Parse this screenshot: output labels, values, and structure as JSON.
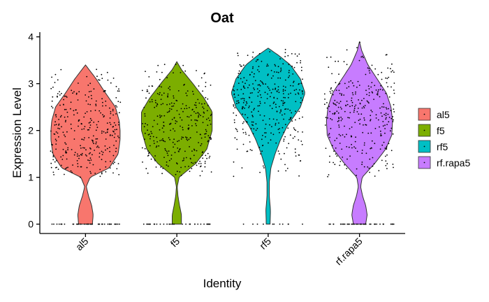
{
  "chart_data": {
    "type": "violin",
    "title": "Oat",
    "xlabel": "Identity",
    "ylabel": "Expression Level",
    "ylim": [
      -0.2,
      4.1
    ],
    "yticks": [
      0,
      1,
      2,
      3,
      4
    ],
    "categories": [
      "al5",
      "f5",
      "rf5",
      "rf.rapa5"
    ],
    "legend": {
      "position": "right",
      "entries": [
        "al5",
        "f5",
        "rf5",
        "rf.rapa5"
      ]
    },
    "grid": false,
    "series": [
      {
        "name": "al5",
        "color": "#F8766D",
        "max": 3.4,
        "zero_fraction": 0.12,
        "profile": [
          [
            0,
            0.18
          ],
          [
            0.2,
            0.2
          ],
          [
            0.4,
            0.16
          ],
          [
            0.6,
            0.08
          ],
          [
            0.8,
            0.02
          ],
          [
            1.0,
            0.12
          ],
          [
            1.2,
            0.62
          ],
          [
            1.5,
            0.85
          ],
          [
            1.8,
            0.9
          ],
          [
            2.0,
            0.9
          ],
          [
            2.2,
            0.88
          ],
          [
            2.5,
            0.78
          ],
          [
            2.8,
            0.52
          ],
          [
            3.1,
            0.28
          ],
          [
            3.4,
            0
          ]
        ]
      },
      {
        "name": "f5",
        "color": "#7CAE00",
        "max": 3.47,
        "zero_fraction": 0.1,
        "profile": [
          [
            0,
            0.12
          ],
          [
            0.2,
            0.12
          ],
          [
            0.4,
            0.07
          ],
          [
            0.6,
            0.03
          ],
          [
            0.8,
            0.01
          ],
          [
            1.0,
            0.06
          ],
          [
            1.3,
            0.5
          ],
          [
            1.6,
            0.78
          ],
          [
            2.0,
            0.92
          ],
          [
            2.4,
            0.92
          ],
          [
            2.7,
            0.7
          ],
          [
            3.0,
            0.42
          ],
          [
            3.3,
            0.12
          ],
          [
            3.47,
            0
          ]
        ]
      },
      {
        "name": "rf5",
        "color": "#00BFC4",
        "max": 3.76,
        "zero_fraction": 0.03,
        "profile": [
          [
            0,
            0.05
          ],
          [
            0.3,
            0.06
          ],
          [
            0.6,
            0.03
          ],
          [
            0.9,
            0.03
          ],
          [
            1.2,
            0.07
          ],
          [
            1.5,
            0.18
          ],
          [
            1.8,
            0.32
          ],
          [
            2.1,
            0.5
          ],
          [
            2.5,
            0.84
          ],
          [
            2.8,
            0.96
          ],
          [
            3.1,
            0.84
          ],
          [
            3.4,
            0.58
          ],
          [
            3.6,
            0.28
          ],
          [
            3.76,
            0
          ]
        ]
      },
      {
        "name": "rf.rapa5",
        "color": "#C77CFF",
        "max": 3.9,
        "zero_fraction": 0.12,
        "profile": [
          [
            0,
            0.16
          ],
          [
            0.2,
            0.2
          ],
          [
            0.4,
            0.16
          ],
          [
            0.6,
            0.08
          ],
          [
            0.8,
            0.03
          ],
          [
            1.0,
            0.07
          ],
          [
            1.3,
            0.4
          ],
          [
            1.6,
            0.68
          ],
          [
            1.9,
            0.84
          ],
          [
            2.2,
            0.86
          ],
          [
            2.5,
            0.82
          ],
          [
            2.8,
            0.7
          ],
          [
            3.1,
            0.46
          ],
          [
            3.4,
            0.22
          ],
          [
            3.7,
            0.06
          ],
          [
            3.9,
            0
          ]
        ]
      }
    ]
  }
}
